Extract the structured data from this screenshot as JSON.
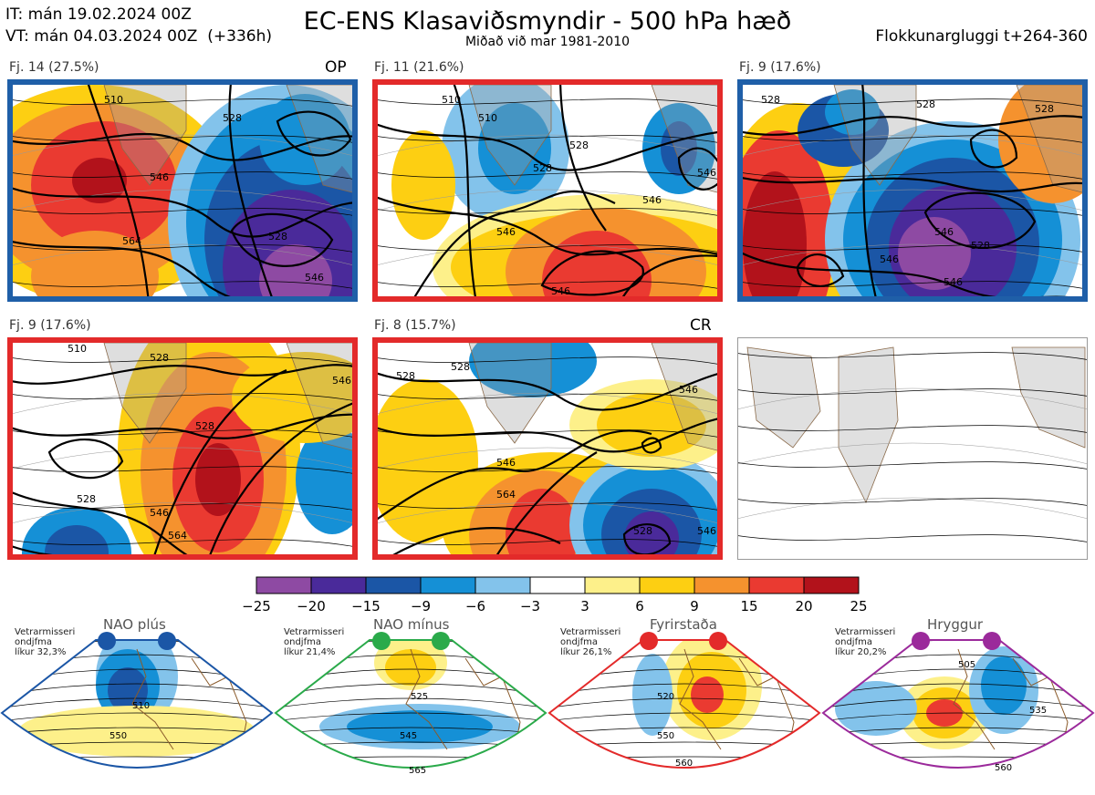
{
  "header": {
    "it": "IT: mán 19.02.2024 00Z",
    "vt": "VT: mán 04.03.2024 00Z  (+336h)",
    "title": "EC-ENS Klasaviðsmyndir - 500 hPa hæð",
    "subtitle": "Miðað við mar 1981-2010",
    "window": "Flokkunargluggi t+264-360"
  },
  "panels": [
    {
      "label": "Fj. 14 (27.5%)",
      "tag": "OP",
      "border": "#1f5fa8",
      "contours": [
        {
          "text": "510"
        },
        {
          "text": "528"
        },
        {
          "text": "546"
        },
        {
          "text": "564"
        },
        {
          "text": "528"
        },
        {
          "text": "546"
        },
        {
          "text": "546"
        }
      ]
    },
    {
      "label": "Fj. 11 (21.6%)",
      "tag": "",
      "border": "#e32a2a",
      "contours": [
        {
          "text": "510"
        },
        {
          "text": "528"
        },
        {
          "text": "528"
        },
        {
          "text": "510"
        },
        {
          "text": "546"
        },
        {
          "text": "546"
        },
        {
          "text": "546"
        },
        {
          "text": "546"
        }
      ]
    },
    {
      "label": "Fj. 9 (17.6%)",
      "tag": "",
      "border": "#1f5fa8",
      "contours": [
        {
          "text": "528"
        },
        {
          "text": "528"
        },
        {
          "text": "546"
        },
        {
          "text": "528"
        },
        {
          "text": "546"
        },
        {
          "text": "546"
        },
        {
          "text": "528"
        }
      ]
    },
    {
      "label": "Fj. 9 (17.6%)",
      "tag": "",
      "border": "#e32a2a",
      "contours": [
        {
          "text": "510"
        },
        {
          "text": "528"
        },
        {
          "text": "528"
        },
        {
          "text": "546"
        },
        {
          "text": "564"
        },
        {
          "text": "546"
        },
        {
          "text": "528"
        }
      ]
    },
    {
      "label": "Fj. 8 (15.7%)",
      "tag": "CR",
      "border": "#e32a2a",
      "contours": [
        {
          "text": "528"
        },
        {
          "text": "528"
        },
        {
          "text": "546"
        },
        {
          "text": "564"
        },
        {
          "text": "528"
        },
        {
          "text": "546"
        },
        {
          "text": "546"
        }
      ]
    },
    {
      "label": "",
      "tag": "",
      "border": "#999999",
      "contours": []
    }
  ],
  "colorbar": {
    "ticks": [
      "−25",
      "−20",
      "−15",
      "−9",
      "−6",
      "−3",
      "3",
      "6",
      "9",
      "15",
      "20",
      "25"
    ],
    "colors": [
      "#8e4aa3",
      "#4a2a9a",
      "#1b56a6",
      "#1590d6",
      "#83c3eb",
      "#ffffff",
      "#fdf08a",
      "#fdcf12",
      "#f5922e",
      "#ea3a31",
      "#b2121b"
    ]
  },
  "regimes": [
    {
      "name": "NAO plús",
      "note": [
        "Vetrarmisseri",
        "ondjfma",
        "líkur 32,3%"
      ],
      "color": "#1b56a6",
      "labels": [
        "510",
        "550"
      ]
    },
    {
      "name": "NAO mínus",
      "note": [
        "Vetrarmisseri",
        "ondjfma",
        "líkur 21,4%"
      ],
      "color": "#2aaa4a",
      "labels": [
        "525",
        "545",
        "565"
      ]
    },
    {
      "name": "Fyrirstaða",
      "note": [
        "Vetrarmisseri",
        "ondjfma",
        "líkur 26,1%"
      ],
      "color": "#e32a2a",
      "labels": [
        "520",
        "550",
        "560"
      ]
    },
    {
      "name": "Hryggur",
      "note": [
        "Vetrarmisseri",
        "ondjfma",
        "líkur 20,2%"
      ],
      "color": "#9b2a9b",
      "labels": [
        "505",
        "535",
        "560"
      ]
    }
  ]
}
